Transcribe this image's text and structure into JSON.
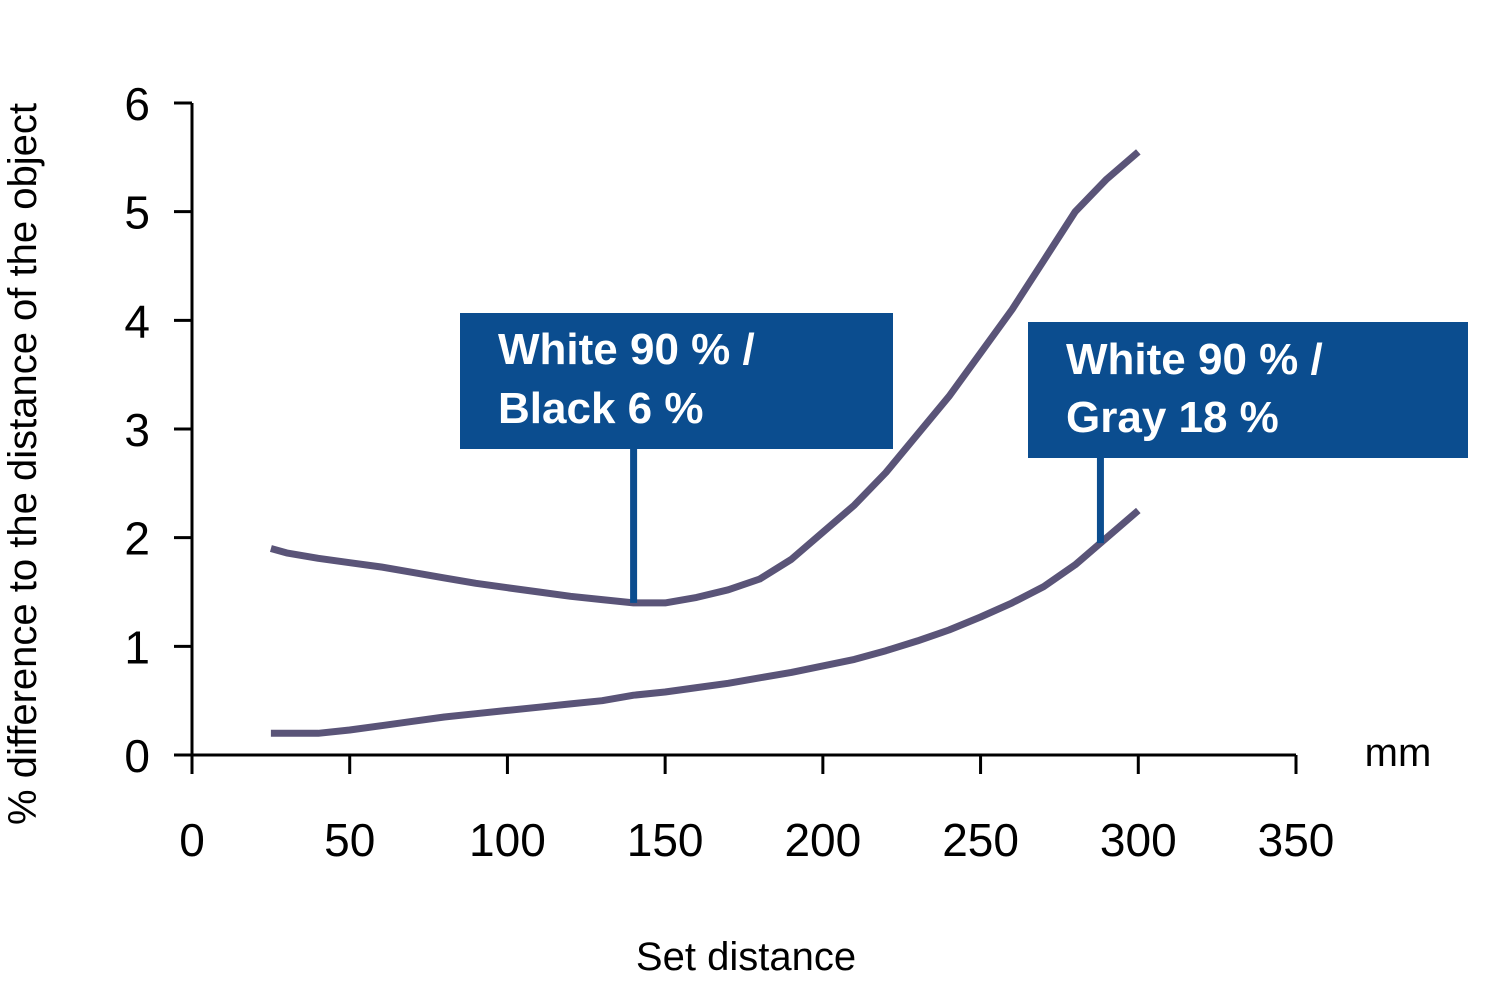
{
  "chart_data": {
    "type": "line",
    "xlabel": "Set distance",
    "ylabel": "% difference to the distance of the object",
    "x_unit": "mm",
    "xlim": [
      0,
      350
    ],
    "ylim": [
      0,
      6
    ],
    "x_ticks": [
      0,
      50,
      100,
      150,
      200,
      250,
      300,
      350
    ],
    "y_ticks": [
      0,
      1,
      2,
      3,
      4,
      5,
      6
    ],
    "grid": false,
    "legend": "none",
    "line_color": "#5a5478",
    "callout_color": "#0b4d8f",
    "series": [
      {
        "name": "White 90 % / Black 6 %",
        "label_lines": [
          "White 90 % /",
          "Black 6 %"
        ],
        "x": [
          25,
          30,
          40,
          50,
          60,
          70,
          80,
          90,
          100,
          110,
          120,
          130,
          140,
          150,
          160,
          170,
          180,
          190,
          200,
          210,
          220,
          230,
          240,
          250,
          260,
          270,
          280,
          290,
          300
        ],
        "y": [
          1.9,
          1.86,
          1.81,
          1.77,
          1.73,
          1.68,
          1.63,
          1.58,
          1.54,
          1.5,
          1.46,
          1.43,
          1.4,
          1.4,
          1.45,
          1.52,
          1.62,
          1.8,
          2.05,
          2.3,
          2.6,
          2.95,
          3.3,
          3.7,
          4.1,
          4.55,
          5.0,
          5.3,
          5.55
        ],
        "callout_x": 140,
        "callout_y": 1.4
      },
      {
        "name": "White 90 % / Gray 18 %",
        "label_lines": [
          "White 90 % /",
          "Gray 18 %"
        ],
        "x": [
          25,
          30,
          40,
          50,
          60,
          70,
          80,
          90,
          100,
          110,
          120,
          130,
          140,
          150,
          160,
          170,
          180,
          190,
          200,
          210,
          220,
          230,
          240,
          250,
          260,
          270,
          280,
          290,
          300
        ],
        "y": [
          0.2,
          0.2,
          0.2,
          0.23,
          0.27,
          0.31,
          0.35,
          0.38,
          0.41,
          0.44,
          0.47,
          0.5,
          0.55,
          0.58,
          0.62,
          0.66,
          0.71,
          0.76,
          0.82,
          0.88,
          0.96,
          1.05,
          1.15,
          1.27,
          1.4,
          1.55,
          1.75,
          2.0,
          2.25
        ],
        "callout_x": 288,
        "callout_y": 1.95
      }
    ]
  }
}
